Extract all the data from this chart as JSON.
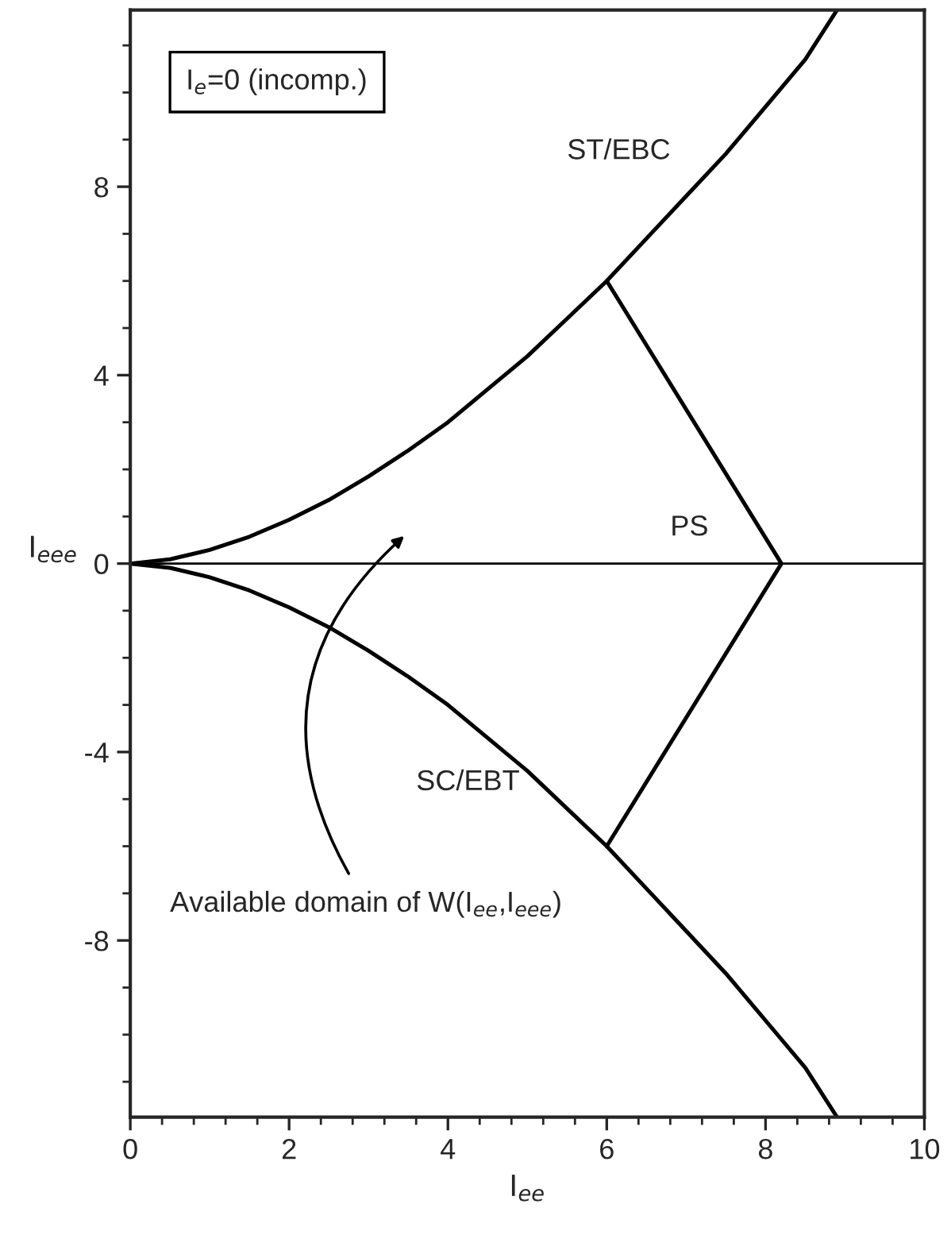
{
  "chart_data": {
    "type": "line",
    "xlabel": "I$_{ee}$",
    "ylabel": "I$_{eee}$",
    "xlim": [
      0,
      10
    ],
    "ylim": [
      -11.75,
      11.75
    ],
    "xticks": [
      0,
      2,
      4,
      6,
      8,
      10
    ],
    "yticks": [
      -8,
      -4,
      0,
      4,
      8
    ],
    "series": [
      {
        "color": "#000000",
        "x": [
          0,
          0.5,
          1,
          1.5,
          2,
          2.5,
          3,
          3.5,
          4,
          4.5,
          5,
          5.5,
          6,
          6.5,
          7,
          7.5,
          8,
          8.5,
          8.9
        ],
        "values": [
          0,
          0.09,
          0.29,
          0.57,
          0.93,
          1.35,
          1.85,
          2.4,
          3.0,
          3.7,
          4.4,
          5.2,
          6.0,
          6.9,
          7.8,
          8.7,
          9.7,
          10.7,
          11.75
        ]
      },
      {
        "color": "#000000",
        "x": [
          0,
          0.5,
          1,
          1.5,
          2,
          2.5,
          3,
          3.5,
          4,
          4.5,
          5,
          5.5,
          6,
          6.5,
          7,
          7.5,
          8,
          8.5,
          8.9
        ],
        "values": [
          0,
          -0.09,
          -0.29,
          -0.57,
          -0.93,
          -1.35,
          -1.85,
          -2.4,
          -3.0,
          -3.7,
          -4.4,
          -5.2,
          -6.0,
          -6.9,
          -7.8,
          -8.7,
          -9.7,
          -10.7,
          -11.75
        ]
      },
      {
        "color": "#000000",
        "x": [
          0,
          10
        ],
        "values": [
          0,
          0
        ]
      },
      {
        "color": "#000000",
        "x": [
          6,
          8.2,
          6
        ],
        "values": [
          6,
          0,
          -6
        ]
      }
    ],
    "annotations": [
      "I$_{e}$=0 (incomp.)",
      "ST/EBC",
      "PS",
      "SC/EBT",
      "Available domain of W(I$_{ee}$,I$_{eee}$)"
    ],
    "grid": false,
    "legend": false,
    "marker": "none",
    "line_style": "solid"
  }
}
